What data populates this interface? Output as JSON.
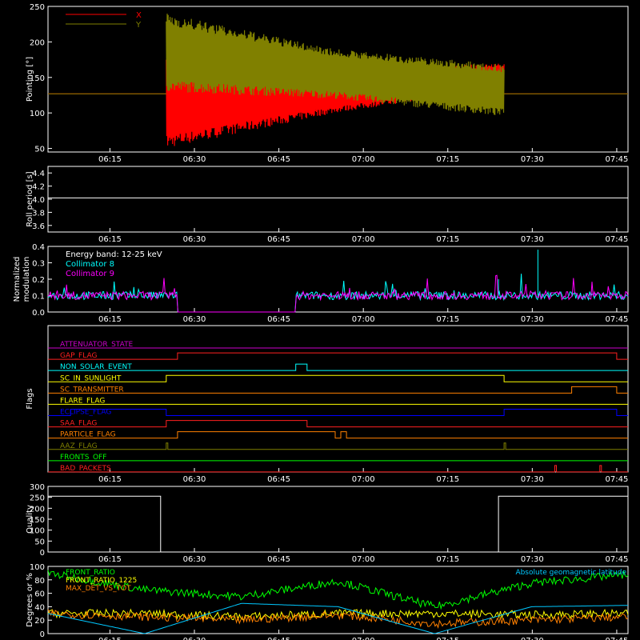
{
  "x_ticks": [
    "06:15",
    "06:30",
    "06:45",
    "07:00",
    "07:15",
    "07:30",
    "07:45"
  ],
  "chart_data": [
    {
      "type": "line",
      "ylabel": "Pointing [°]",
      "ylim": [
        45,
        250
      ],
      "yticks": [
        50,
        100,
        150,
        200,
        250
      ],
      "legend": "top-left",
      "series": [
        {
          "name": "X",
          "color": "#ff0000",
          "before": 127,
          "start": "06:25",
          "end": "07:25",
          "upper_start": 175,
          "upper_mid": 160,
          "upper_end": 170,
          "lower_start": 50,
          "lower_mid": 100,
          "lower_end": 135
        },
        {
          "name": "Y",
          "color": "#808000",
          "before": 127,
          "start": "06:25",
          "end": "07:25",
          "upper_start": 240,
          "upper_mid": 190,
          "upper_end": 168,
          "lower_start": 130,
          "lower_mid": 120,
          "lower_end": 95
        }
      ]
    },
    {
      "type": "line",
      "ylabel": "Roll period [s]",
      "ylim": [
        3.5,
        4.5
      ],
      "yticks": [
        3.6,
        3.8,
        4.0,
        4.2,
        4.4
      ],
      "series": [
        {
          "color": "#ffffff",
          "value": 4.02
        }
      ]
    },
    {
      "type": "line",
      "ylabel": [
        "Normalized",
        "modulation"
      ],
      "ylim": [
        0,
        0.4
      ],
      "yticks": [
        0.0,
        0.1,
        0.2,
        0.3,
        0.4
      ],
      "annotation": "Energy band: 12-25 keV",
      "legend": "top-left",
      "gap": [
        "06:27",
        "06:48"
      ],
      "series": [
        {
          "name": "Collimator 8",
          "color": "#00ffff",
          "typical": 0.1,
          "spikes": [
            {
              "x": "07:31",
              "y": 0.38
            },
            {
              "x": "07:24",
              "y": 0.2
            }
          ]
        },
        {
          "name": "Collimator 9",
          "color": "#ff00ff",
          "typical": 0.1,
          "spikes": []
        }
      ]
    },
    {
      "type": "table",
      "ylabel": "Flags",
      "flags": [
        {
          "name": "ATTENUATOR_STATE",
          "color": "#cc00cc",
          "on": []
        },
        {
          "name": "GAP_FLAG",
          "color": "#ff2020",
          "on": [
            [
              "06:27",
              "07:45"
            ]
          ]
        },
        {
          "name": "NON_SOLAR_EVENT",
          "color": "#00ffff",
          "on": [
            [
              "06:48",
              "06:50"
            ]
          ]
        },
        {
          "name": "SC_IN_SUNLIGHT",
          "color": "#ffff00",
          "on": [
            [
              "06:25",
              "07:25"
            ]
          ]
        },
        {
          "name": "SC_TRANSMITTER",
          "color": "#ff8000",
          "on": [
            [
              "07:37",
              "07:45"
            ]
          ]
        },
        {
          "name": "FLARE_FLAG",
          "color": "#ffff00",
          "on": []
        },
        {
          "name": "ECLIPSE_FLAG",
          "color": "#0000ff",
          "on": [
            [
              "06:08",
              "06:25"
            ],
            [
              "07:25",
              "07:45"
            ]
          ]
        },
        {
          "name": "SAA_FLAG",
          "color": "#ff2020",
          "on": [
            [
              "06:25",
              "06:50"
            ]
          ]
        },
        {
          "name": "PARTICLE_FLAG",
          "color": "#ff8000",
          "on": [
            [
              "06:27",
              "06:55"
            ],
            [
              "06:56",
              "06:57"
            ]
          ]
        },
        {
          "name": "AAZ_FLAG",
          "color": "#808000",
          "on": [
            [
              "06:25",
              "06:25"
            ],
            [
              "07:25",
              "07:25"
            ]
          ]
        },
        {
          "name": "FRONTS_OFF",
          "color": "#00ff00",
          "on": []
        },
        {
          "name": "BAD_PACKETS",
          "color": "#ff2020",
          "on": [
            [
              "07:34",
              "07:34"
            ],
            [
              "07:42",
              "07:42"
            ]
          ]
        }
      ]
    },
    {
      "type": "line",
      "ylabel": "Quality",
      "ylim": [
        0,
        300
      ],
      "yticks": [
        0,
        50,
        100,
        150,
        200,
        250,
        300
      ],
      "series": [
        {
          "color": "#ffffff",
          "high": 255,
          "low": 0,
          "low_from": "06:24",
          "low_to": "07:24"
        }
      ]
    },
    {
      "type": "line",
      "ylabel": "Degrees or %",
      "ylim": [
        0,
        100
      ],
      "yticks": [
        0,
        20,
        40,
        60,
        80,
        100
      ],
      "legend": "top-left",
      "series": [
        {
          "name": "FRONT_RATIO",
          "color": "#00ff00",
          "levels": [
            90,
            65,
            55,
            78,
            40,
            75,
            88
          ]
        },
        {
          "name": "FRONT_RATIO_1225",
          "color": "#ffff00",
          "levels": [
            30,
            30,
            25,
            30,
            30,
            28,
            30
          ]
        },
        {
          "name": "MAX_DET_VS_TOT",
          "color": "#ff8000",
          "levels": [
            30,
            25,
            20,
            28,
            15,
            20,
            25
          ]
        },
        {
          "name": "Absolute geomagnetic latitude",
          "color": "#00c8ff",
          "levels": [
            30,
            0,
            45,
            40,
            0,
            40,
            42
          ]
        }
      ],
      "legend_right": "Absolute geomagnetic latitude"
    }
  ]
}
